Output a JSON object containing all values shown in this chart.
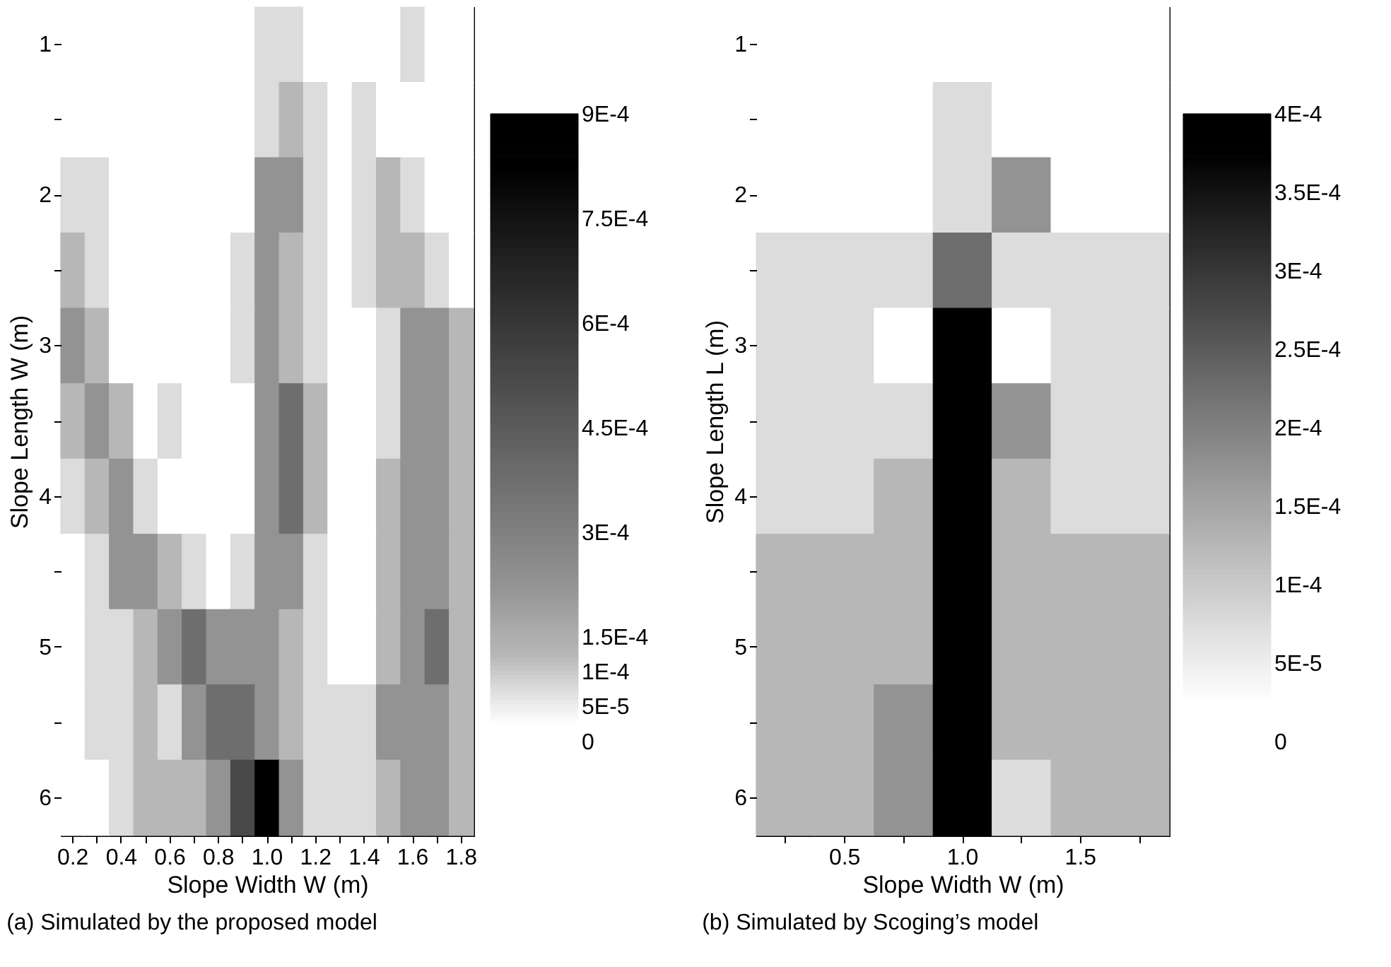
{
  "chart_data": [
    {
      "type": "heatmap",
      "xlabel": "Slope Width W (m)",
      "ylabel": "Slope Length W (m)",
      "annotations": [
        "(a) Simulated by the proposed model"
      ],
      "categories": [
        "0.2",
        null,
        "0.4",
        null,
        "0.6",
        null,
        "0.8",
        null,
        "1.0",
        null,
        "1.2",
        null,
        "1.4",
        null,
        "1.6",
        null,
        "1.8"
      ],
      "y_categories": [
        "1",
        null,
        "2",
        null,
        "3",
        null,
        "4",
        null,
        "5",
        null,
        "6"
      ],
      "clim": [
        0,
        0.0009
      ],
      "cticks": [
        0,
        {
          "value": 5e-05,
          "label": "5E-5"
        },
        {
          "value": 0.0001,
          "label": "1E-4"
        },
        {
          "value": 0.00015,
          "label": "1.5E-4"
        },
        {
          "value": 0.0003,
          "label": "3E-4"
        },
        {
          "value": 0.00045,
          "label": "4.5E-4"
        },
        {
          "value": 0.0006,
          "label": "6E-4"
        },
        {
          "value": 0.00075,
          "label": "7.5E-4"
        },
        {
          "value": 0.0009,
          "label": "9E-4"
        }
      ],
      "cells": [
        [
          2.5e-05,
          2.5e-05,
          2.5e-05,
          2.5e-05,
          2.5e-05,
          2.5e-05,
          2.5e-05,
          2.5e-05,
          7.5e-05,
          7.5e-05,
          2.5e-05,
          2.5e-05,
          2.5e-05,
          2.5e-05,
          7.5e-05,
          2.5e-05,
          2.5e-05
        ],
        [
          2.5e-05,
          2.5e-05,
          2.5e-05,
          2.5e-05,
          2.5e-05,
          2.5e-05,
          2.5e-05,
          2.5e-05,
          7.5e-05,
          0.000125,
          7.5e-05,
          2.5e-05,
          7.5e-05,
          2.5e-05,
          2.5e-05,
          2.5e-05,
          2.5e-05
        ],
        [
          7.5e-05,
          7.5e-05,
          2.5e-05,
          2.5e-05,
          2.5e-05,
          2.5e-05,
          2.5e-05,
          2.5e-05,
          0.000225,
          0.000225,
          7.5e-05,
          2.5e-05,
          7.5e-05,
          0.000125,
          7.5e-05,
          2.5e-05,
          2.5e-05
        ],
        [
          0.000125,
          7.5e-05,
          2.5e-05,
          2.5e-05,
          2.5e-05,
          2.5e-05,
          2.5e-05,
          7.5e-05,
          0.000225,
          0.000125,
          7.5e-05,
          2.5e-05,
          7.5e-05,
          0.000125,
          0.000125,
          7.5e-05,
          2.5e-05
        ],
        [
          0.000225,
          0.000125,
          2.5e-05,
          2.5e-05,
          2.5e-05,
          2.5e-05,
          2.5e-05,
          7.5e-05,
          0.000225,
          0.000125,
          7.5e-05,
          2.5e-05,
          2.5e-05,
          7.5e-05,
          0.000225,
          0.000225,
          0.000125
        ],
        [
          0.000125,
          0.000225,
          0.000125,
          2.5e-05,
          7.5e-05,
          2.5e-05,
          2.5e-05,
          2.5e-05,
          0.000225,
          0.000375,
          0.000125,
          2.5e-05,
          2.5e-05,
          7.5e-05,
          0.000225,
          0.000225,
          0.000125
        ],
        [
          7.5e-05,
          0.000125,
          0.000225,
          7.5e-05,
          2.5e-05,
          2.5e-05,
          2.5e-05,
          2.5e-05,
          0.000225,
          0.000375,
          0.000125,
          2.5e-05,
          2.5e-05,
          0.000125,
          0.000225,
          0.000225,
          0.000125
        ],
        [
          2.5e-05,
          7.5e-05,
          0.000225,
          0.000225,
          0.000125,
          7.5e-05,
          2.5e-05,
          7.5e-05,
          0.000225,
          0.000225,
          7.5e-05,
          2.5e-05,
          2.5e-05,
          0.000125,
          0.000225,
          0.000225,
          0.000125
        ],
        [
          2.5e-05,
          7.5e-05,
          7.5e-05,
          0.000125,
          0.000225,
          0.000375,
          0.000225,
          0.000225,
          0.000225,
          0.000125,
          7.5e-05,
          2.5e-05,
          2.5e-05,
          0.000125,
          0.000225,
          0.000375,
          0.000125
        ],
        [
          2.5e-05,
          7.5e-05,
          7.5e-05,
          0.000125,
          7.5e-05,
          0.000225,
          0.000375,
          0.000375,
          0.000225,
          0.000125,
          7.5e-05,
          7.5e-05,
          7.5e-05,
          0.000225,
          0.000225,
          0.000225,
          0.000125
        ],
        [
          2.5e-05,
          2.5e-05,
          7.5e-05,
          0.000125,
          0.000125,
          0.000125,
          0.000225,
          0.000525,
          0.000825,
          0.000225,
          7.5e-05,
          7.5e-05,
          7.5e-05,
          0.000125,
          0.000225,
          0.000225,
          0.000125
        ]
      ]
    },
    {
      "type": "heatmap",
      "xlabel": "Slope Width W (m)",
      "ylabel": "Slope Length L (m)",
      "annotations": [
        "(b) Simulated by Scoging’s model"
      ],
      "categories": [
        null,
        "0.5",
        null,
        "1.0",
        null,
        "1.5",
        null
      ],
      "y_categories": [
        "1",
        null,
        "2",
        null,
        "3",
        null,
        "4",
        null,
        "5",
        null,
        "6"
      ],
      "clim": [
        0,
        0.0004
      ],
      "cticks": [
        0,
        {
          "value": 5e-05,
          "label": "5E-5"
        },
        {
          "value": 0.0001,
          "label": "1E-4"
        },
        {
          "value": 0.00015,
          "label": "1.5E-4"
        },
        {
          "value": 0.0002,
          "label": "2E-4"
        },
        {
          "value": 0.00025,
          "label": "2.5E-4"
        },
        {
          "value": 0.0003,
          "label": "3E-4"
        },
        {
          "value": 0.00035,
          "label": "3.5E-4"
        },
        {
          "value": 0.0004,
          "label": "4E-4"
        }
      ],
      "cells": [
        [
          2.5e-05,
          2.5e-05,
          2.5e-05,
          2.5e-05,
          2.5e-05,
          2.5e-05,
          2.5e-05
        ],
        [
          2.5e-05,
          2.5e-05,
          2.5e-05,
          7.5e-05,
          2.5e-05,
          2.5e-05,
          2.5e-05
        ],
        [
          2.5e-05,
          2.5e-05,
          2.5e-05,
          7.5e-05,
          0.000175,
          2.5e-05,
          2.5e-05
        ],
        [
          7.5e-05,
          7.5e-05,
          7.5e-05,
          0.000225,
          7.5e-05,
          7.5e-05,
          7.5e-05
        ],
        [
          7.5e-05,
          7.5e-05,
          2.5e-05,
          0.000375,
          2.5e-05,
          7.5e-05,
          7.5e-05
        ],
        [
          7.5e-05,
          7.5e-05,
          7.5e-05,
          0.000375,
          0.000175,
          7.5e-05,
          7.5e-05
        ],
        [
          7.5e-05,
          7.5e-05,
          0.000125,
          0.000375,
          0.000125,
          7.5e-05,
          7.5e-05
        ],
        [
          0.000125,
          0.000125,
          0.000125,
          0.000375,
          0.000125,
          0.000125,
          0.000125
        ],
        [
          0.000125,
          0.000125,
          0.000125,
          0.000375,
          0.000125,
          0.000125,
          0.000125
        ],
        [
          0.000125,
          0.000125,
          0.000175,
          0.000375,
          0.000125,
          0.000125,
          0.000125
        ],
        [
          0.000125,
          0.000125,
          0.000175,
          0.000375,
          7.5e-05,
          0.000125,
          0.000125
        ]
      ]
    }
  ]
}
